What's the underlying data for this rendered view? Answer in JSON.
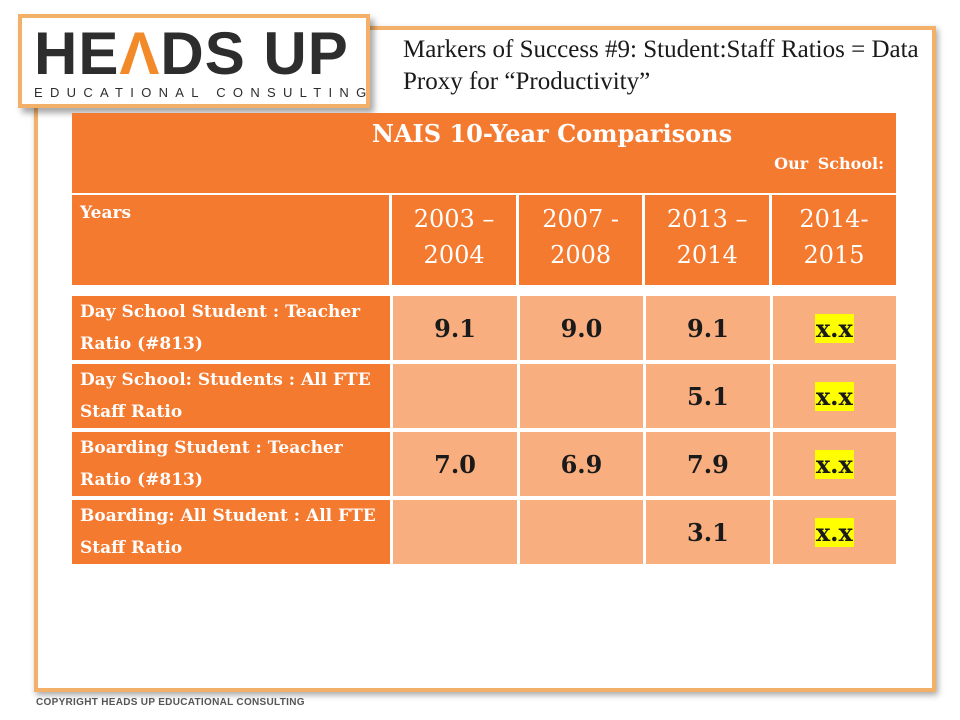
{
  "logo": {
    "word_part1": "HE",
    "caret": "Λ",
    "word_part2": "DS UP",
    "tagline": "EDUCATIONAL CONSULTING"
  },
  "slide_title": "Markers of Success #9: Student:Staff Ratios = Data Proxy for “Productivity”",
  "table": {
    "title": "NAIS 10-Year Comparisons",
    "subtitle": "Our School:",
    "years_label": "Years",
    "years": [
      "2003 – 2004",
      "2007 - 2008",
      "2013 – 2014",
      "2014- 2015"
    ],
    "rows": [
      {
        "label": "Day School Student : Teacher Ratio (#813)",
        "values": [
          "9.1",
          "9.0",
          "9.1",
          "x.x"
        ]
      },
      {
        "label": "Day School: Students : All FTE Staff Ratio",
        "values": [
          "",
          "",
          "5.1",
          "x.x"
        ]
      },
      {
        "label": "Boarding Student : Teacher Ratio (#813)",
        "values": [
          "7.0",
          "6.9",
          "7.9",
          "x.x"
        ]
      },
      {
        "label": "Boarding: All Student : All FTE Staff Ratio",
        "values": [
          "",
          "",
          "3.1",
          "x.x"
        ]
      }
    ]
  },
  "copyright": "COPYRIGHT HEADS UP EDUCATIONAL CONSULTING",
  "colors": {
    "accent": "#f47a30",
    "cell": "#f9ae80",
    "highlight": "#ffff00",
    "frame": "#f3b068"
  }
}
